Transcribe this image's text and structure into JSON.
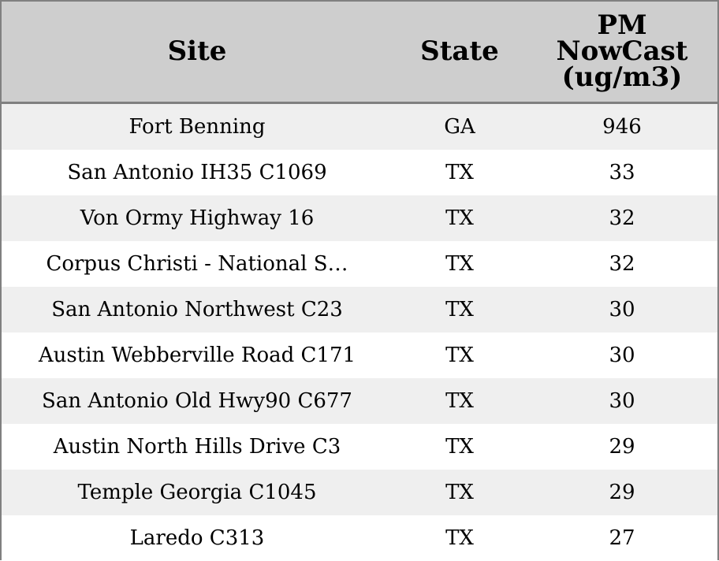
{
  "chart_data": {
    "type": "table",
    "columns": [
      "Site",
      "State",
      "PM NowCast (ug/m3)"
    ],
    "header_lines": {
      "site": "Site",
      "state": "State",
      "pm": [
        "PM",
        "NowCast",
        "(ug/m3)"
      ]
    },
    "rows": [
      {
        "site": "Fort Benning",
        "state": "GA",
        "pm": "946"
      },
      {
        "site": "San Antonio IH35 C1069",
        "state": "TX",
        "pm": "33"
      },
      {
        "site": "Von Ormy Highway 16",
        "state": "TX",
        "pm": "32"
      },
      {
        "site": "Corpus Christi - National S…",
        "state": "TX",
        "pm": "32"
      },
      {
        "site": "San Antonio Northwest C23",
        "state": "TX",
        "pm": "30"
      },
      {
        "site": "Austin Webberville Road C171",
        "state": "TX",
        "pm": "30"
      },
      {
        "site": "San Antonio Old Hwy90 C677",
        "state": "TX",
        "pm": "30"
      },
      {
        "site": "Austin North Hills Drive C3",
        "state": "TX",
        "pm": "29"
      },
      {
        "site": "Temple Georgia C1045",
        "state": "TX",
        "pm": "29"
      },
      {
        "site": "Laredo C313",
        "state": "TX",
        "pm": "27"
      }
    ]
  },
  "colors": {
    "header_bg": "#cecece",
    "row_shaded": "#efefef",
    "row_plain": "#ffffff",
    "border": "#808080"
  }
}
